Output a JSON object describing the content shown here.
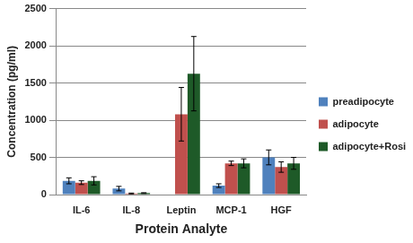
{
  "chart_data": {
    "type": "bar",
    "x_label": "Protein Analyte",
    "y_label": "Concentration (pg/ml)",
    "categories": [
      "IL-6",
      "IL-8",
      "Leptin",
      "MCP-1",
      "HGF"
    ],
    "series": [
      {
        "name": "preadipocyte",
        "color": "#4f81bd",
        "values": [
          185,
          80,
          0,
          120,
          500
        ],
        "errors": [
          40,
          30,
          0,
          25,
          100
        ]
      },
      {
        "name": "adipocyte",
        "color": "#c0504d",
        "values": [
          160,
          15,
          1080,
          420,
          370
        ],
        "errors": [
          25,
          5,
          360,
          30,
          70
        ]
      },
      {
        "name": "adipocyte+Rosi",
        "color": "#1e5a28",
        "values": [
          185,
          20,
          1625,
          420,
          420
        ],
        "errors": [
          55,
          5,
          500,
          60,
          80
        ]
      }
    ],
    "ylim": [
      0,
      2500
    ],
    "yticks": [
      0,
      500,
      1000,
      1500,
      2000,
      2500
    ],
    "grid": true,
    "legend": "right"
  }
}
